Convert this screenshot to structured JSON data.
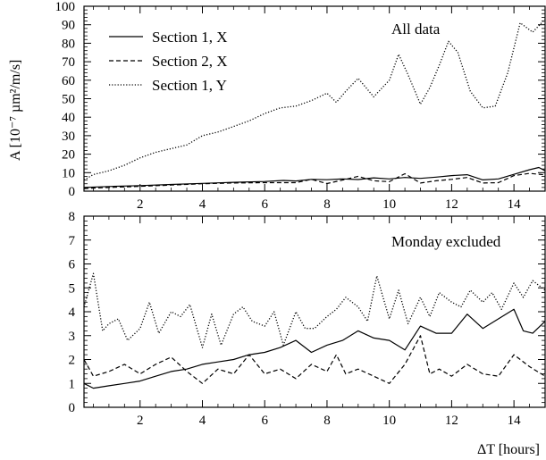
{
  "chart_data": [
    {
      "type": "line",
      "annotation": "All data",
      "ylabel": "A [10⁻⁷ µm²/m/s]",
      "xlim": [
        0.2,
        15
      ],
      "ylim": [
        0,
        100
      ],
      "xticks": [
        2,
        4,
        6,
        8,
        10,
        12,
        14
      ],
      "yticks": [
        0,
        10,
        20,
        30,
        40,
        50,
        60,
        70,
        80,
        90,
        100
      ],
      "grid": false,
      "legend_position": "top-left",
      "series": [
        {
          "name": "Section 1, X",
          "style": "solid",
          "x": [
            0.2,
            1,
            2,
            3,
            4,
            5,
            6,
            6.6,
            7,
            7.5,
            8,
            8.5,
            9,
            9.5,
            10,
            10.5,
            11,
            11.5,
            12,
            12.5,
            13,
            13.5,
            14,
            14.5,
            14.8,
            15
          ],
          "y": [
            2,
            2.5,
            3,
            3.6,
            4.2,
            4.8,
            5.2,
            5.8,
            5.5,
            6.4,
            6.2,
            6.6,
            6.3,
            7.2,
            6.6,
            7.4,
            6.9,
            7.6,
            8.4,
            8.9,
            6.1,
            6.6,
            9.1,
            11.6,
            12.8,
            11
          ]
        },
        {
          "name": "Section 2, X",
          "style": "dashed",
          "x": [
            0.2,
            1,
            2,
            3,
            4,
            5,
            6,
            7,
            7.5,
            8,
            8.5,
            9,
            9.5,
            10,
            10.5,
            11,
            11.5,
            12,
            12.5,
            13,
            13.5,
            14,
            14.5,
            15
          ],
          "y": [
            1.4,
            2,
            2.6,
            3.3,
            4,
            4.4,
            4.6,
            4.6,
            6.4,
            4.1,
            6,
            8,
            5.6,
            5.1,
            9.4,
            4.4,
            5.6,
            6.4,
            7.4,
            4.4,
            4.6,
            8.4,
            9.6,
            8.8
          ]
        },
        {
          "name": "Section 1, Y",
          "style": "dotted",
          "x": [
            0.2,
            0.5,
            1,
            1.5,
            2,
            2.5,
            3,
            3.5,
            4,
            4.5,
            5,
            5.5,
            6,
            6.5,
            7,
            7.5,
            8,
            8.3,
            8.6,
            9,
            9.5,
            10,
            10.3,
            10.6,
            11,
            11.3,
            11.6,
            11.9,
            12.2,
            12.6,
            13,
            13.4,
            13.8,
            14.2,
            14.6,
            15
          ],
          "y": [
            6,
            9,
            11,
            14,
            18,
            21,
            23,
            25,
            30,
            32,
            35,
            38,
            42,
            45,
            46,
            49,
            53,
            48,
            54,
            61,
            51,
            60,
            74,
            63,
            47,
            56,
            68,
            81,
            75,
            54,
            45,
            46,
            64,
            91,
            86,
            93
          ]
        }
      ]
    },
    {
      "type": "line",
      "annotation": "Monday excluded",
      "xlabel": "ΔT [hours]",
      "xlim": [
        0.2,
        15
      ],
      "ylim": [
        0,
        8
      ],
      "xticks": [
        2,
        4,
        6,
        8,
        10,
        12,
        14
      ],
      "yticks": [
        0,
        1,
        2,
        3,
        4,
        5,
        6,
        7,
        8
      ],
      "grid": false,
      "series": [
        {
          "name": "Section 1, X",
          "style": "solid",
          "x": [
            0.2,
            0.5,
            1,
            1.5,
            2,
            2.5,
            3,
            3.5,
            4,
            4.5,
            5,
            5.5,
            6,
            6.5,
            7,
            7.5,
            8,
            8.5,
            9,
            9.5,
            10,
            10.5,
            11,
            11.5,
            12,
            12.5,
            13,
            13.5,
            14,
            14.3,
            14.6,
            15
          ],
          "y": [
            1,
            0.8,
            0.9,
            1,
            1.1,
            1.3,
            1.5,
            1.6,
            1.8,
            1.9,
            2,
            2.2,
            2.3,
            2.5,
            2.8,
            2.3,
            2.6,
            2.8,
            3.2,
            2.9,
            2.8,
            2.4,
            3.4,
            3.1,
            3.1,
            3.9,
            3.3,
            3.7,
            4.1,
            3.2,
            3.1,
            3.6
          ]
        },
        {
          "name": "Section 2, X",
          "style": "dashed",
          "x": [
            0.2,
            0.5,
            1,
            1.5,
            2,
            2.5,
            3,
            3.5,
            4,
            4.5,
            5,
            5.5,
            6,
            6.5,
            7,
            7.5,
            8,
            8.3,
            8.6,
            9,
            9.5,
            10,
            10.5,
            11,
            11.3,
            11.6,
            12,
            12.5,
            13,
            13.5,
            14,
            14.5,
            15
          ],
          "y": [
            2,
            1.3,
            1.5,
            1.8,
            1.4,
            1.8,
            2.1,
            1.5,
            1.0,
            1.6,
            1.4,
            2.2,
            1.4,
            1.6,
            1.2,
            1.8,
            1.5,
            2.2,
            1.4,
            1.6,
            1.3,
            1.0,
            1.8,
            3.0,
            1.4,
            1.6,
            1.3,
            1.8,
            1.4,
            1.3,
            2.2,
            1.7,
            1.3
          ]
        },
        {
          "name": "Section 1, Y",
          "style": "dotted",
          "x": [
            0.2,
            0.5,
            0.8,
            1,
            1.3,
            1.6,
            2,
            2.3,
            2.6,
            3,
            3.3,
            3.6,
            4,
            4.3,
            4.6,
            5,
            5.3,
            5.6,
            6,
            6.3,
            6.6,
            7,
            7.3,
            7.6,
            8,
            8.3,
            8.6,
            9,
            9.3,
            9.6,
            10,
            10.3,
            10.6,
            11,
            11.3,
            11.6,
            12,
            12.3,
            12.6,
            13,
            13.3,
            13.6,
            14,
            14.3,
            14.6,
            15
          ],
          "y": [
            4.2,
            5.6,
            3.2,
            3.5,
            3.7,
            2.8,
            3.3,
            4.4,
            3.1,
            4.0,
            3.8,
            4.3,
            2.5,
            3.9,
            2.6,
            3.9,
            4.2,
            3.6,
            3.4,
            4.0,
            2.6,
            4.0,
            3.3,
            3.3,
            3.8,
            4.1,
            4.6,
            4.2,
            3.6,
            5.5,
            3.7,
            4.9,
            3.5,
            4.6,
            3.8,
            4.8,
            4.4,
            4.2,
            4.9,
            4.4,
            4.8,
            4.1,
            5.2,
            4.6,
            5.3,
            4.9
          ]
        }
      ]
    }
  ]
}
